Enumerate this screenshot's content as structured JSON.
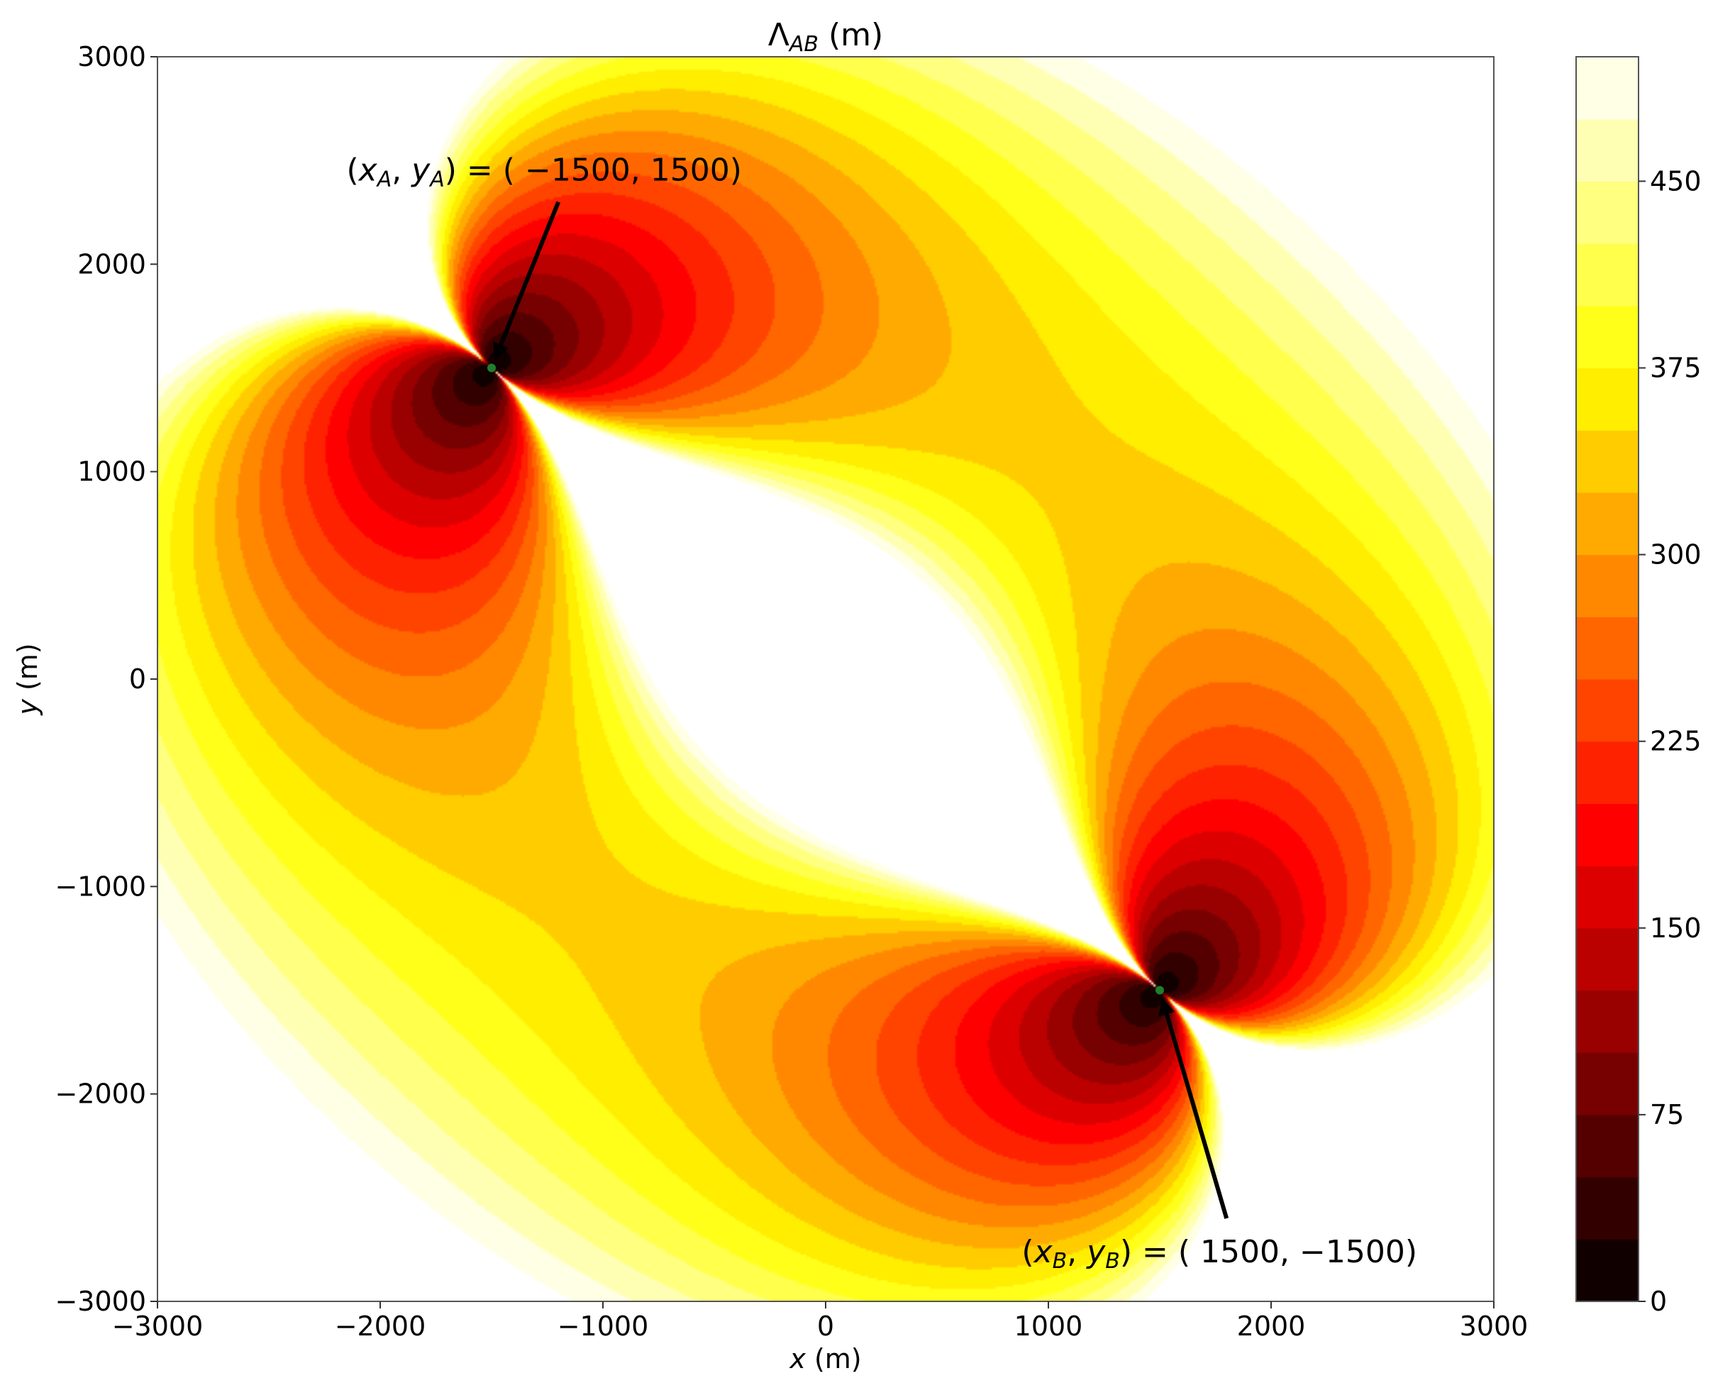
{
  "chart_data": {
    "type": "heatmap",
    "title": "Λ_AB (m)",
    "title_parts": {
      "symbol": "Λ",
      "subscript": "AB",
      "unit": "(m)"
    },
    "xlabel": "x (m)",
    "xlabel_parts": {
      "var": "x",
      "unit": "(m)"
    },
    "ylabel": "y (m)",
    "ylabel_parts": {
      "var": "y",
      "unit": "(m)"
    },
    "xlim": [
      -3000,
      3000
    ],
    "ylim": [
      -3000,
      3000
    ],
    "xticks": [
      -3000,
      -2000,
      -1000,
      0,
      1000,
      2000,
      3000
    ],
    "xtick_labels": [
      "−3000",
      "−2000",
      "−1000",
      "0",
      "1000",
      "2000",
      "3000"
    ],
    "yticks": [
      -3000,
      -2000,
      -1000,
      0,
      1000,
      2000,
      3000
    ],
    "ytick_labels": [
      "−3000",
      "−2000",
      "−1000",
      "0",
      "1000",
      "2000",
      "3000"
    ],
    "grid": false,
    "colormap": "hot",
    "colorbar": {
      "min": 0,
      "max": 500,
      "levels": 20,
      "ticks": [
        0,
        75,
        150,
        225,
        300,
        375,
        450
      ],
      "tick_labels": [
        "0",
        "75",
        "150",
        "225",
        "300",
        "375",
        "450"
      ]
    },
    "points": [
      {
        "name": "A",
        "x": -1500,
        "y": 1500,
        "color": "#1f7f2f",
        "label_parts": {
          "x": "x",
          "y": "y",
          "sub": "A",
          "eq": ") = ( ",
          "coords": "−1500, 1500"
        },
        "label_anchor": [
          -1200,
          2300
        ]
      },
      {
        "name": "B",
        "x": 1500,
        "y": -1500,
        "color": "#1f7f2f",
        "label_parts": {
          "x": "x",
          "y": "y",
          "sub": "B",
          "eq": ") = ( ",
          "coords": "1500, −1500"
        },
        "label_anchor": [
          1800,
          -2600
        ]
      }
    ],
    "field": {
      "description": "Λ_AB(x,y) = r_A·r_B/(r_A+r_B) · sin(angle APB) / 4, clipped at colorbar max",
      "scale": 0.25
    }
  }
}
